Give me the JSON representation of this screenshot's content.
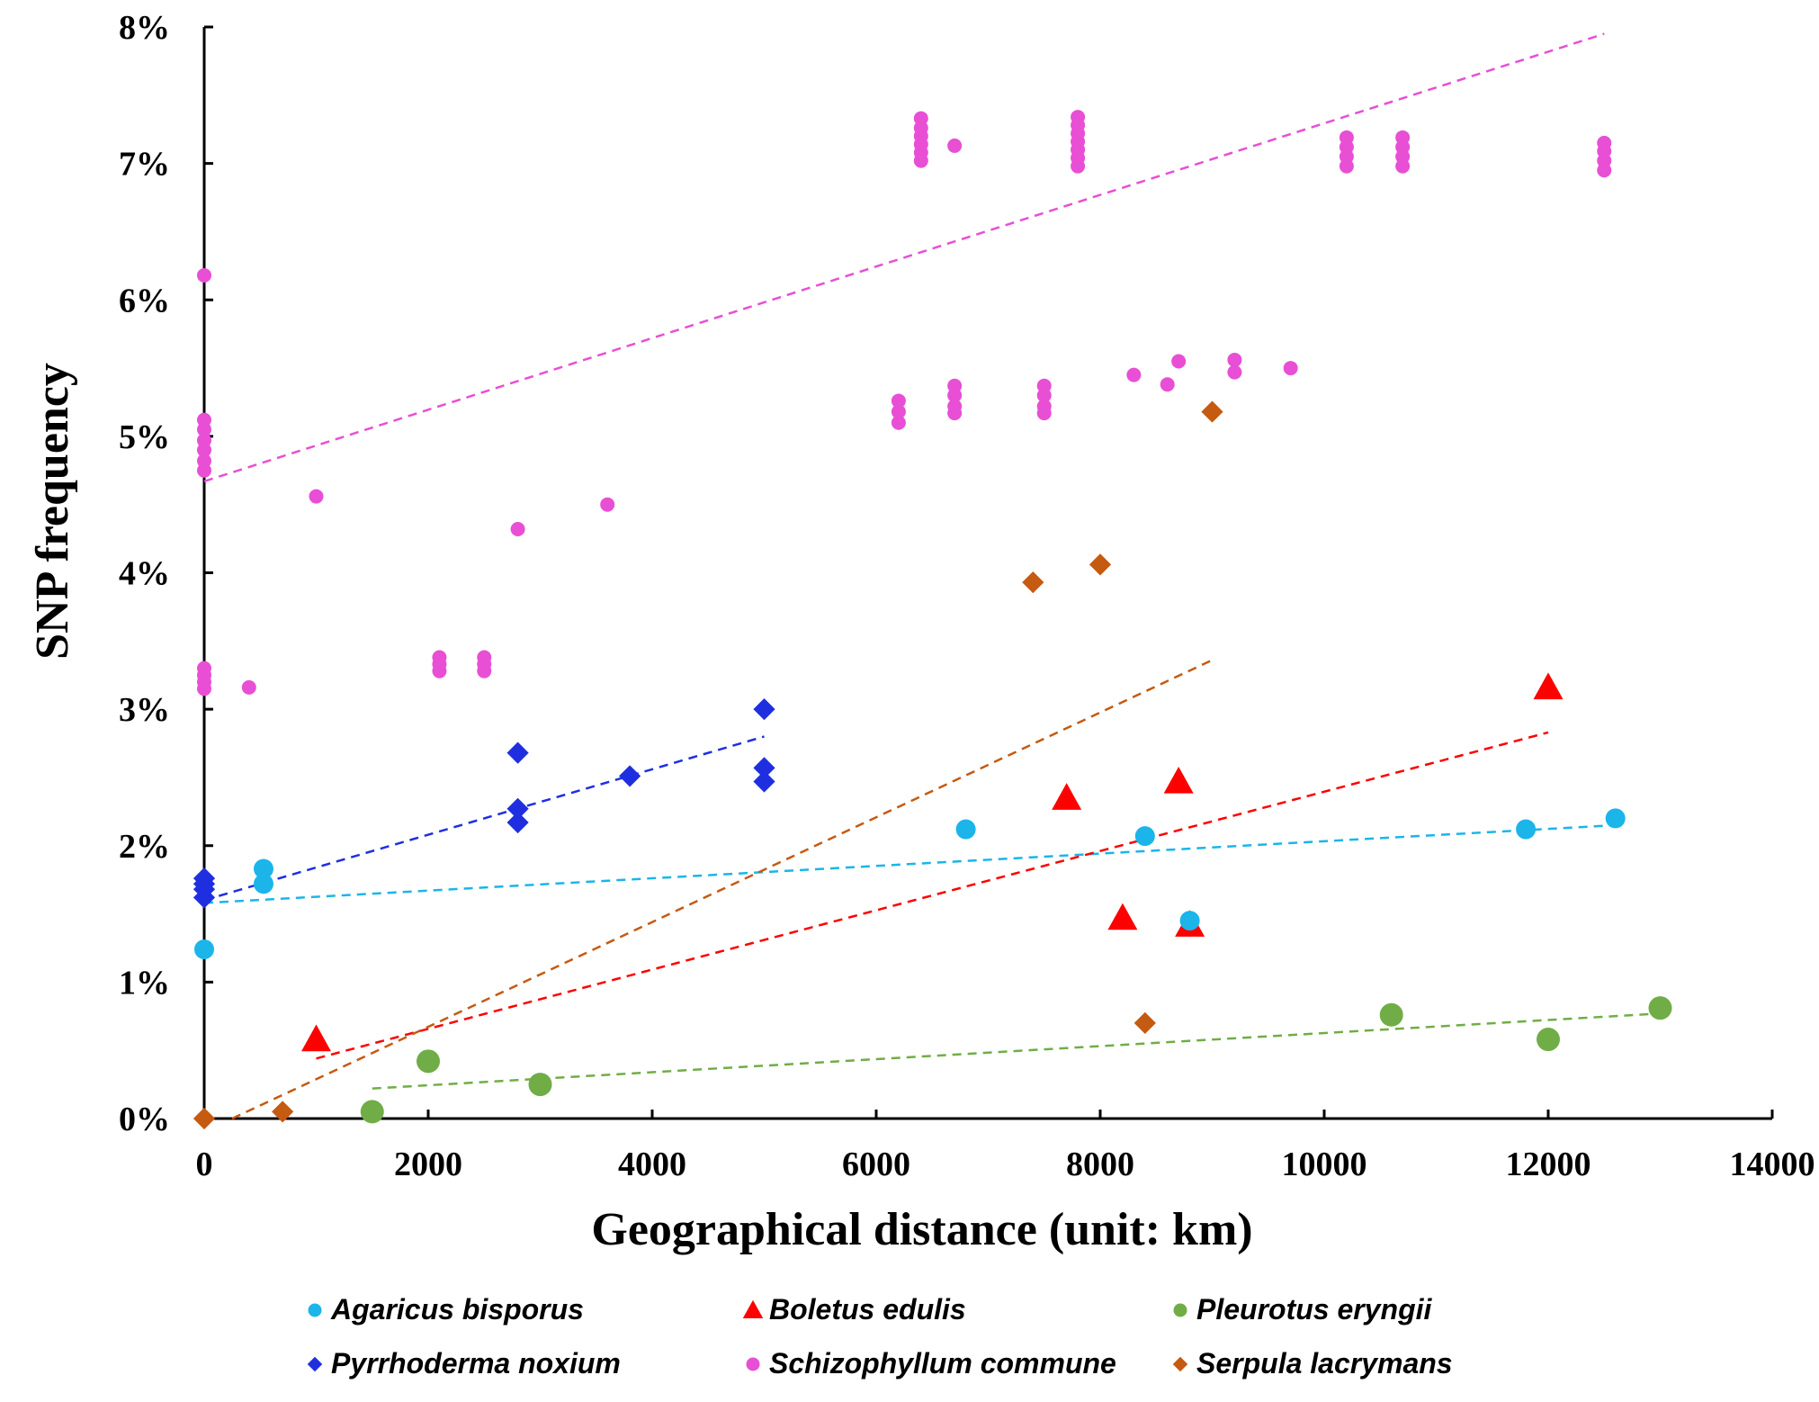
{
  "chart_data": {
    "type": "scatter",
    "title": "",
    "xlabel": "Geographical distance (unit: km)",
    "ylabel": "SNP frequency",
    "xlim": [
      0,
      14000
    ],
    "ylim": [
      0,
      8
    ],
    "x_ticks": [
      0,
      2000,
      4000,
      6000,
      8000,
      10000,
      12000,
      14000
    ],
    "y_ticks": [
      0,
      1,
      2,
      3,
      4,
      5,
      6,
      7,
      8
    ],
    "y_tick_labels": [
      "0%",
      "1%",
      "2%",
      "3%",
      "4%",
      "5%",
      "6%",
      "7%",
      "8%"
    ],
    "grid": false,
    "legend_position": "bottom",
    "series": [
      {
        "name": "Agaricus bisporus",
        "marker": "circle",
        "color": "#1bb5e9",
        "points": [
          [
            0,
            1.24
          ],
          [
            530,
            1.72
          ],
          [
            530,
            1.83
          ],
          [
            6800,
            2.12
          ],
          [
            8400,
            2.07
          ],
          [
            8800,
            1.45
          ],
          [
            11800,
            2.12
          ],
          [
            12600,
            2.2
          ]
        ],
        "trend": [
          [
            0,
            1.58
          ],
          [
            12600,
            2.15
          ]
        ]
      },
      {
        "name": "Boletus edulis",
        "marker": "triangle",
        "color": "#ff0000",
        "points": [
          [
            1000,
            0.58
          ],
          [
            7700,
            2.35
          ],
          [
            8200,
            1.47
          ],
          [
            8700,
            2.47
          ],
          [
            8800,
            1.42
          ],
          [
            12000,
            3.16
          ]
        ],
        "trend": [
          [
            1000,
            0.44
          ],
          [
            12000,
            2.83
          ]
        ]
      },
      {
        "name": "Pleurotus eryngii",
        "marker": "circle",
        "color": "#70ad47",
        "points": [
          [
            1500,
            0.05
          ],
          [
            2000,
            0.42
          ],
          [
            3000,
            0.25
          ],
          [
            10600,
            0.76
          ],
          [
            12000,
            0.58
          ],
          [
            13000,
            0.81
          ]
        ],
        "trend": [
          [
            1500,
            0.22
          ],
          [
            13000,
            0.77
          ]
        ]
      },
      {
        "name": "Pyrrhoderma noxium",
        "marker": "diamond",
        "color": "#1f2fe0",
        "points": [
          [
            0,
            1.62
          ],
          [
            0,
            1.68
          ],
          [
            0,
            1.72
          ],
          [
            0,
            1.76
          ],
          [
            2800,
            2.17
          ],
          [
            2800,
            2.27
          ],
          [
            2800,
            2.68
          ],
          [
            3800,
            2.51
          ],
          [
            5000,
            2.47
          ],
          [
            5000,
            2.57
          ],
          [
            5000,
            3.0
          ]
        ],
        "trend": [
          [
            0,
            1.6
          ],
          [
            5000,
            2.8
          ]
        ]
      },
      {
        "name": "Schizophyllum commune",
        "marker": "circle",
        "color": "#e84fd5",
        "points": [
          [
            0,
            3.15
          ],
          [
            0,
            3.2
          ],
          [
            0,
            3.25
          ],
          [
            0,
            3.3
          ],
          [
            0,
            4.75
          ],
          [
            0,
            4.82
          ],
          [
            0,
            4.9
          ],
          [
            0,
            4.97
          ],
          [
            0,
            5.05
          ],
          [
            0,
            5.12
          ],
          [
            0,
            6.18
          ],
          [
            400,
            3.16
          ],
          [
            1000,
            4.56
          ],
          [
            2100,
            3.28
          ],
          [
            2100,
            3.33
          ],
          [
            2100,
            3.38
          ],
          [
            2500,
            3.28
          ],
          [
            2500,
            3.33
          ],
          [
            2500,
            3.38
          ],
          [
            2800,
            4.32
          ],
          [
            3600,
            4.5
          ],
          [
            6200,
            5.1
          ],
          [
            6200,
            5.18
          ],
          [
            6200,
            5.26
          ],
          [
            6400,
            7.02
          ],
          [
            6400,
            7.08
          ],
          [
            6400,
            7.14
          ],
          [
            6400,
            7.2
          ],
          [
            6400,
            7.26
          ],
          [
            6400,
            7.33
          ],
          [
            6700,
            5.17
          ],
          [
            6700,
            5.22
          ],
          [
            6700,
            5.3
          ],
          [
            6700,
            5.37
          ],
          [
            6700,
            7.13
          ],
          [
            7500,
            5.17
          ],
          [
            7500,
            5.22
          ],
          [
            7500,
            5.3
          ],
          [
            7500,
            5.37
          ],
          [
            7800,
            6.98
          ],
          [
            7800,
            7.04
          ],
          [
            7800,
            7.1
          ],
          [
            7800,
            7.16
          ],
          [
            7800,
            7.22
          ],
          [
            7800,
            7.28
          ],
          [
            7800,
            7.34
          ],
          [
            8300,
            5.45
          ],
          [
            8600,
            5.38
          ],
          [
            8700,
            5.55
          ],
          [
            9200,
            5.47
          ],
          [
            9200,
            5.56
          ],
          [
            9700,
            5.5
          ],
          [
            10200,
            6.98
          ],
          [
            10200,
            7.05
          ],
          [
            10200,
            7.12
          ],
          [
            10200,
            7.19
          ],
          [
            10700,
            6.98
          ],
          [
            10700,
            7.05
          ],
          [
            10700,
            7.12
          ],
          [
            10700,
            7.19
          ],
          [
            12500,
            6.95
          ],
          [
            12500,
            7.02
          ],
          [
            12500,
            7.09
          ],
          [
            12500,
            7.15
          ]
        ],
        "trend": [
          [
            0,
            4.67
          ],
          [
            12500,
            7.95
          ]
        ]
      },
      {
        "name": "Serpula lacrymans",
        "marker": "diamond",
        "color": "#c55a11",
        "points": [
          [
            0,
            0.0
          ],
          [
            700,
            0.05
          ],
          [
            7400,
            3.93
          ],
          [
            8000,
            4.06
          ],
          [
            8400,
            0.7
          ],
          [
            9000,
            5.18
          ]
        ],
        "trend": [
          [
            250,
            0.0
          ],
          [
            9000,
            3.36
          ]
        ]
      }
    ]
  }
}
